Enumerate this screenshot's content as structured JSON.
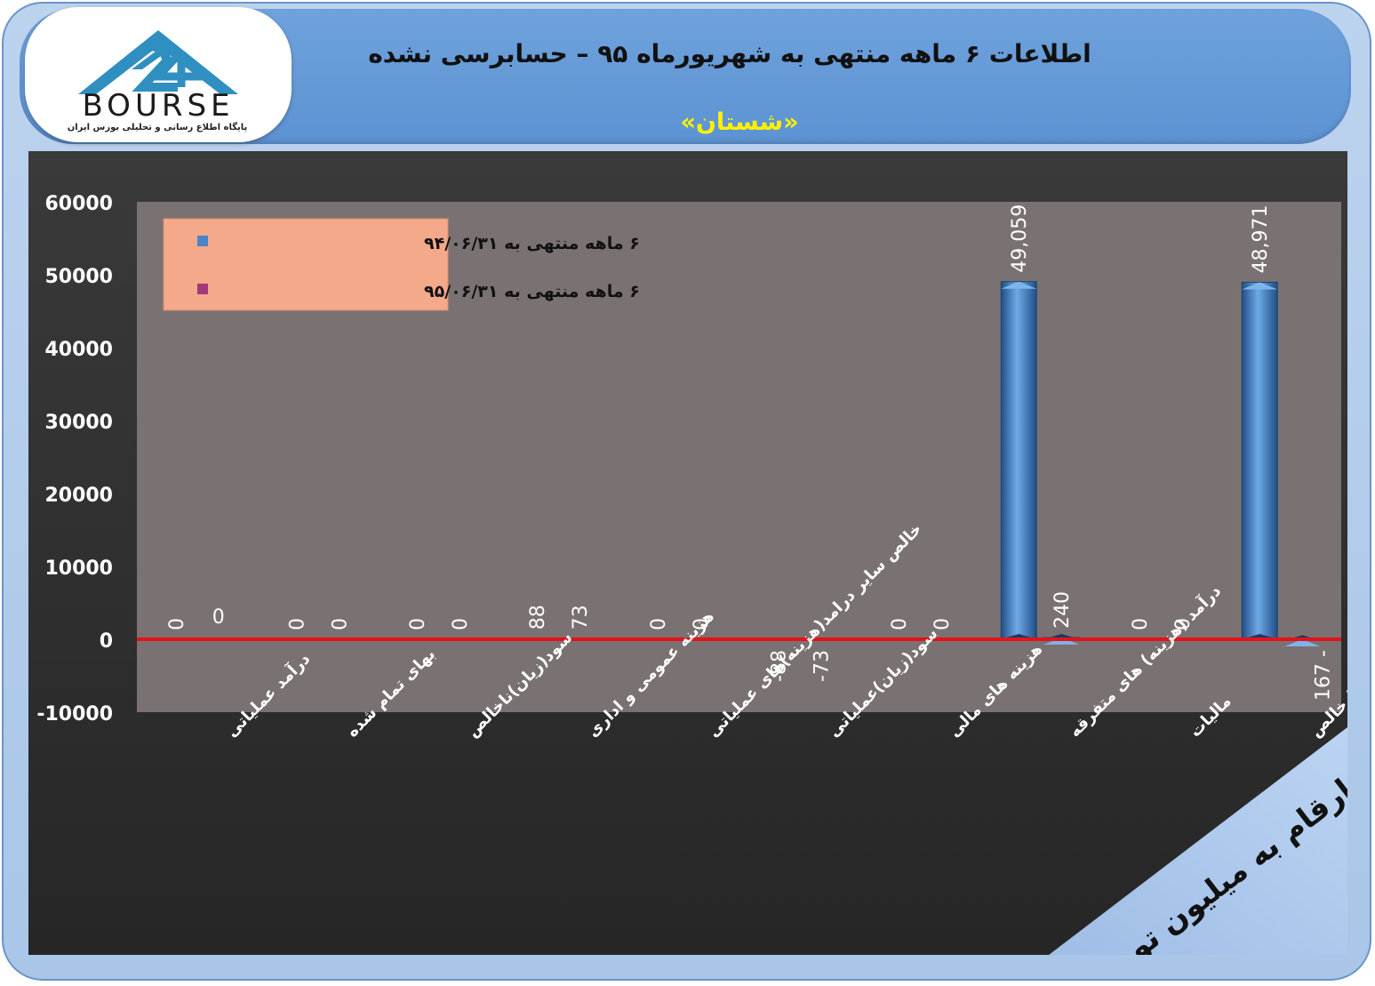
{
  "header": {
    "title": "اطلاعات ۶ ماهه منتهی به شهریورماه ۹۵ – حسابرسی نشده",
    "subtitle": "«شستان»"
  },
  "logo": {
    "text": "BOURSE",
    "tagline": "پایگاه اطلاع رسانی و تحلیلی بورس ایران",
    "icon": "bourse24-logo-icon"
  },
  "colors": {
    "series1": "#4a84c4",
    "series2": "#a0387a",
    "zero_line": "#e8101a",
    "plot_bg": "#7a7272",
    "legend_bg": "#f4a98a"
  },
  "chart_data": {
    "type": "bar",
    "categories": [
      "درآمد عملیاتی",
      "بهای تمام شده",
      "سود(زیان)ناخالص",
      "هزینه عمومی و اداری",
      "خالص سایر درامد(هزینه)های عملیاتی",
      "سود(زیان)عملیاتی",
      "هزینه های مالی",
      "درآمد (هزینه) های متفرقه",
      "مالیات",
      "سود(زیان) خالص"
    ],
    "series": [
      {
        "name": "۶ ماهه منتهی به ۹۴/۰۶/۳۱",
        "values": [
          0,
          0,
          0,
          88,
          0,
          -88,
          0,
          49059,
          0,
          48971
        ]
      },
      {
        "name": "۶ ماهه منتهی به ۹۵/۰۶/۳۱",
        "values": [
          0,
          0,
          0,
          73,
          0,
          -73,
          0,
          240,
          0,
          -167
        ]
      }
    ],
    "data_labels": [
      [
        "0",
        "0",
        "0",
        "88",
        "0",
        "-88",
        "0",
        "49,059",
        "0",
        "48,971"
      ],
      [
        "0",
        "0",
        "0",
        "73",
        "0",
        "-73",
        "0",
        "240",
        "0",
        "167 -"
      ]
    ],
    "yticks": [
      "60000",
      "50000",
      "40000",
      "30000",
      "20000",
      "10000",
      "0",
      "-10000"
    ],
    "ylim": [
      -10000,
      60000
    ],
    "grid": false,
    "legend_position": "top-left",
    "note": "ارقام به میلیون تومان"
  }
}
